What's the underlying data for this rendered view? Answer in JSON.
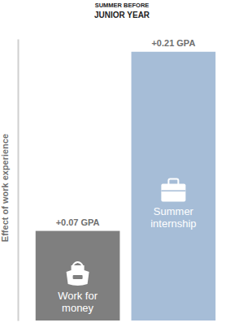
{
  "chart_data": {
    "type": "bar",
    "title": "SUMMER BEFORE",
    "subtitle": "JUNIOR YEAR",
    "y_label": "Effect of work experience",
    "categories": [
      "Work for money",
      "Summer internship"
    ],
    "values": [
      0.07,
      0.21
    ],
    "value_labels": [
      "+0.07 GPA",
      "+0.21 GPA"
    ],
    "colors": [
      "#7f7f7f",
      "#a6bdd7"
    ],
    "ylim": [
      0,
      0.22
    ],
    "yticks": [],
    "grid": false,
    "data_labels": true,
    "tick_labels": false
  }
}
